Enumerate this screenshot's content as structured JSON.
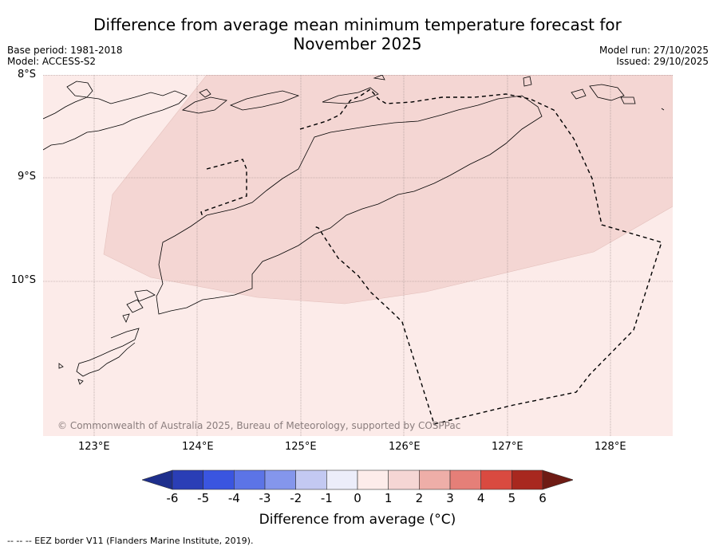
{
  "title_line1": "Difference from average mean minimum temperature forecast for",
  "title_line2": "November 2025",
  "base_period": "Base period: 1981-2018",
  "model": "Model: ACCESS-S2",
  "model_run": "Model run: 27/10/2025",
  "issued": "Issued: 29/10/2025",
  "lat_labels": [
    "8°S",
    "9°S",
    "10°S"
  ],
  "lon_labels": [
    "123°E",
    "124°E",
    "125°E",
    "126°E",
    "127°E",
    "128°E"
  ],
  "copyright": "© Commonwealth of Australia 2025, Bureau of Meteorology, supported by COSPPac",
  "colorbar": {
    "ticks": [
      "-6",
      "-5",
      "-4",
      "-3",
      "-2",
      "-1",
      "0",
      "1",
      "2",
      "3",
      "4",
      "5",
      "6"
    ],
    "colors": [
      "#1e2f8c",
      "#2a3eb6",
      "#3a55e0",
      "#5c74e6",
      "#8496ec",
      "#c3c9f2",
      "#ecedfa",
      "#fdecea",
      "#f5d6d4",
      "#eeaea8",
      "#e57f78",
      "#d94a40",
      "#a8281f",
      "#6e1b14"
    ],
    "label": "Difference from average (°C)"
  },
  "legend_note": "--  --  -- EEZ border V11 (Flanders Marine Institute, 2019).",
  "map_data": {
    "extent": {
      "lon_min": 122.5,
      "lon_max": 128.6,
      "lat_min": -11.5,
      "lat_max": -8.0
    },
    "anomaly_classes": [
      {
        "range": "0 to 1",
        "color": "#fcebe9"
      },
      {
        "range": "1 to 2",
        "color": "#f4d6d3"
      }
    ]
  }
}
